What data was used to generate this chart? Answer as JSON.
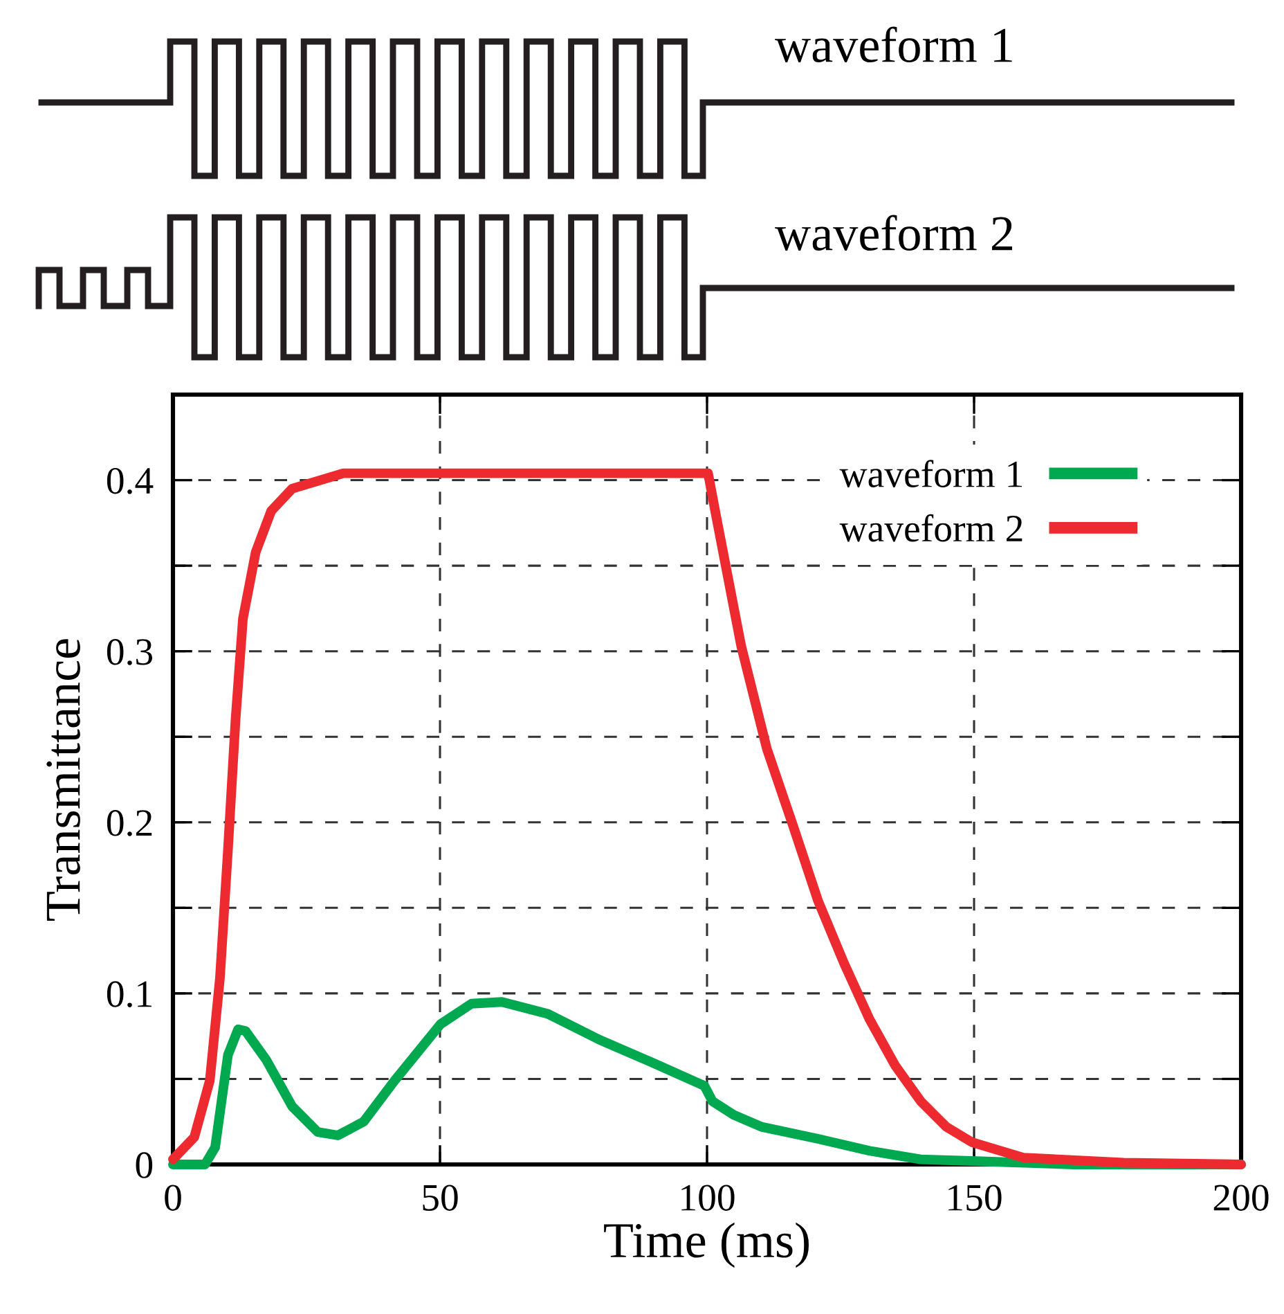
{
  "chart_data": {
    "type": "line",
    "xlabel": "Time (ms)",
    "ylabel": "Transmittance",
    "annotations": [
      "waveform 1",
      "waveform 2"
    ],
    "xlim": [
      0,
      200
    ],
    "xticks": [
      0,
      50,
      100,
      150,
      200
    ],
    "ylim": [
      0,
      0.45
    ],
    "yticks": [
      0,
      {
        "value": 0.05,
        "label": null
      },
      0.1,
      {
        "value": 0.15,
        "label": null
      },
      0.2,
      {
        "value": 0.25,
        "label": null
      },
      0.3,
      {
        "value": 0.35,
        "label": null
      },
      0.4,
      {
        "value": 0.45,
        "label": null
      }
    ],
    "grid": true,
    "legend": "top right",
    "line_style": "solid",
    "marker": "none",
    "series": [
      {
        "name": "waveform 1",
        "color": "#00a84f",
        "x": [
          0,
          6,
          7.9,
          10.3,
          12.2,
          13.6,
          17.5,
          22.3,
          27.1,
          30.9,
          35.7,
          41.5,
          50.1,
          55.9,
          61.6,
          70.2,
          79.8,
          89.4,
          99.5,
          101,
          105,
          110.2,
          120.8,
          130.4,
          140,
          149.6,
          168.7,
          200
        ],
        "values": [
          0,
          0,
          0.01,
          0.064,
          0.079,
          0.078,
          0.061,
          0.034,
          0.019,
          0.017,
          0.025,
          0.049,
          0.082,
          0.094,
          0.095,
          0.088,
          0.073,
          0.06,
          0.046,
          0.037,
          0.029,
          0.022,
          0.015,
          0.008,
          0.003,
          0.002,
          0,
          0
        ]
      },
      {
        "name": "waveform 2",
        "color": "#ec2a2f",
        "x": [
          0,
          4,
          6.9,
          8.8,
          10.3,
          11.7,
          13.1,
          15.5,
          18.4,
          22.3,
          31.9,
          100.2,
          101.4,
          106.4,
          111.2,
          116,
          120.8,
          125.6,
          130.4,
          135.2,
          140,
          144.8,
          149.6,
          159.2,
          178,
          200
        ],
        "values": [
          0.003,
          0.016,
          0.049,
          0.109,
          0.184,
          0.259,
          0.319,
          0.358,
          0.382,
          0.395,
          0.404,
          0.404,
          0.384,
          0.303,
          0.243,
          0.199,
          0.154,
          0.118,
          0.085,
          0.058,
          0.037,
          0.022,
          0.013,
          0.004,
          0.001,
          0
        ]
      }
    ]
  }
}
